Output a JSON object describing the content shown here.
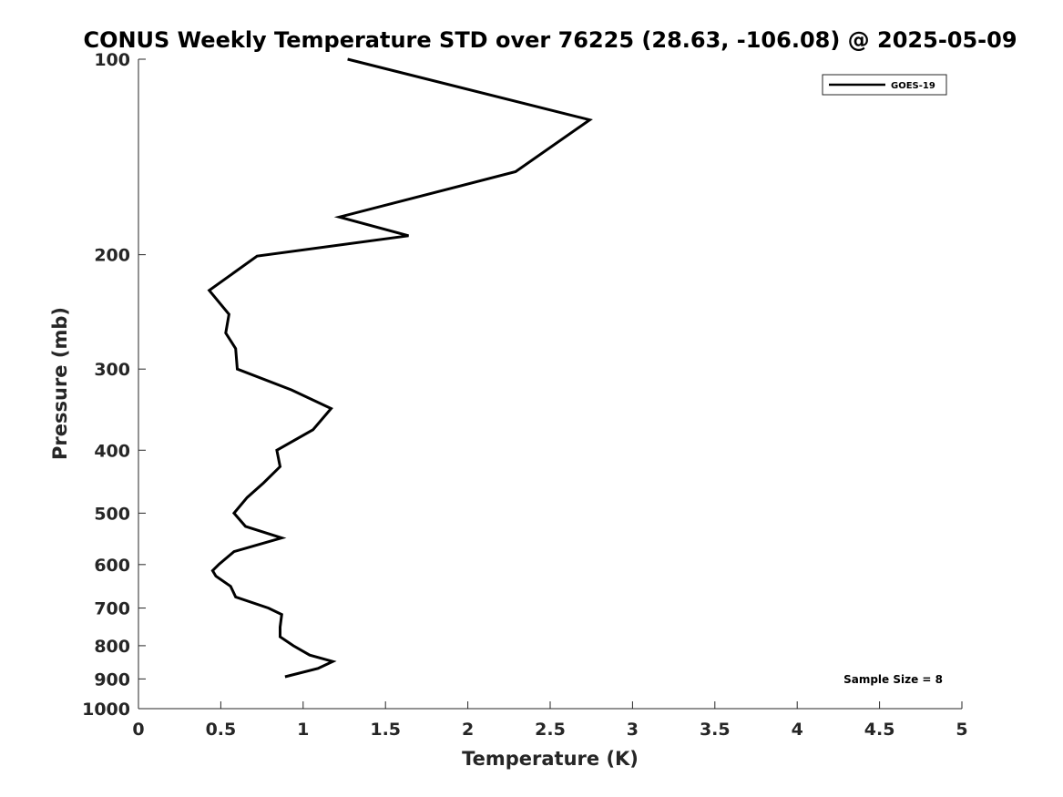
{
  "chart_data": {
    "type": "line",
    "title": "CONUS Weekly Temperature STD over 76225 (28.63, -106.08) @ 2025-05-09",
    "xlabel": "Temperature (K)",
    "ylabel": "Pressure (mb)",
    "xlim": [
      0,
      5
    ],
    "ylim": [
      100,
      1000
    ],
    "y_scale": "log",
    "y_reversed": true,
    "grid": false,
    "legend_position": "top-right",
    "x_ticks": [
      0,
      0.5,
      1,
      1.5,
      2,
      2.5,
      3,
      3.5,
      4,
      4.5,
      5
    ],
    "x_tick_labels": [
      "0",
      "0.5",
      "1",
      "1.5",
      "2",
      "2.5",
      "3",
      "3.5",
      "4",
      "4.5",
      "5"
    ],
    "y_ticks": [
      100,
      200,
      300,
      400,
      500,
      600,
      700,
      800,
      900,
      1000
    ],
    "y_tick_labels": [
      "100",
      "200",
      "300",
      "400",
      "500",
      "600",
      "700",
      "800",
      "900",
      "1000"
    ],
    "series": [
      {
        "name": "GOES-19",
        "color": "#000000",
        "points": [
          {
            "x": 1.27,
            "y": 100
          },
          {
            "x": 2.74,
            "y": 124
          },
          {
            "x": 2.29,
            "y": 149
          },
          {
            "x": 1.22,
            "y": 175
          },
          {
            "x": 1.64,
            "y": 187
          },
          {
            "x": 0.72,
            "y": 201
          },
          {
            "x": 0.43,
            "y": 227
          },
          {
            "x": 0.55,
            "y": 247
          },
          {
            "x": 0.53,
            "y": 264
          },
          {
            "x": 0.59,
            "y": 279
          },
          {
            "x": 0.6,
            "y": 300
          },
          {
            "x": 0.93,
            "y": 323
          },
          {
            "x": 1.17,
            "y": 345
          },
          {
            "x": 1.06,
            "y": 372
          },
          {
            "x": 0.84,
            "y": 400
          },
          {
            "x": 0.86,
            "y": 424
          },
          {
            "x": 0.76,
            "y": 449
          },
          {
            "x": 0.66,
            "y": 473
          },
          {
            "x": 0.58,
            "y": 500
          },
          {
            "x": 0.65,
            "y": 524
          },
          {
            "x": 0.87,
            "y": 546
          },
          {
            "x": 0.58,
            "y": 573
          },
          {
            "x": 0.49,
            "y": 599
          },
          {
            "x": 0.45,
            "y": 613
          },
          {
            "x": 0.47,
            "y": 625
          },
          {
            "x": 0.56,
            "y": 648
          },
          {
            "x": 0.59,
            "y": 673
          },
          {
            "x": 0.79,
            "y": 700
          },
          {
            "x": 0.87,
            "y": 716
          },
          {
            "x": 0.86,
            "y": 749
          },
          {
            "x": 0.86,
            "y": 775
          },
          {
            "x": 0.94,
            "y": 800
          },
          {
            "x": 1.04,
            "y": 827
          },
          {
            "x": 1.18,
            "y": 846
          },
          {
            "x": 1.09,
            "y": 867
          },
          {
            "x": 0.89,
            "y": 893
          }
        ]
      }
    ],
    "annotations": [
      {
        "text": "Sample Size = 8",
        "position": "bottom-right"
      }
    ]
  }
}
